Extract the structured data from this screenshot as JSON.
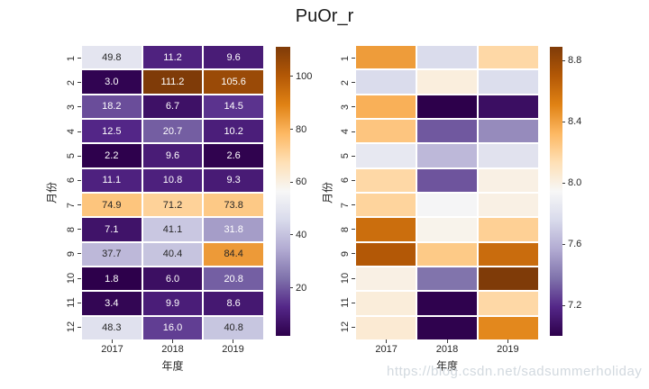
{
  "title": "PuOr_r",
  "watermark": "https://blog.csdn.net/sadsummerholiday",
  "colors": {
    "background": "#ffffff",
    "tick_label": "#262626",
    "annotation_dark": "#262626",
    "annotation_light": "#ffffff",
    "watermark": "#d2d9df",
    "colormap_name": "PuOr_r",
    "colormap_stops": [
      "#2d004b",
      "#542788",
      "#8073ac",
      "#b2abd2",
      "#d8daeb",
      "#f7f7f7",
      "#fee0b6",
      "#fdb863",
      "#e08214",
      "#b35806",
      "#7f3b08"
    ]
  },
  "chart_data": [
    {
      "type": "heatmap",
      "colormap": "PuOr_r",
      "annotated": true,
      "xlabel": "年度",
      "ylabel": "月份",
      "x_categories": [
        "2017",
        "2018",
        "2019"
      ],
      "y_categories": [
        "1",
        "2",
        "3",
        "4",
        "5",
        "6",
        "7",
        "8",
        "9",
        "10",
        "11",
        "12"
      ],
      "vmin": 1.8,
      "vmax": 111.2,
      "colorbar_ticks": [
        "20",
        "40",
        "60",
        "80",
        "100"
      ],
      "values": [
        [
          49.8,
          11.2,
          9.6
        ],
        [
          3.0,
          111.2,
          105.6
        ],
        [
          18.2,
          6.7,
          14.5
        ],
        [
          12.5,
          20.7,
          10.2
        ],
        [
          2.2,
          9.6,
          2.6
        ],
        [
          11.1,
          10.8,
          9.3
        ],
        [
          74.9,
          71.2,
          73.8
        ],
        [
          7.1,
          41.1,
          31.8
        ],
        [
          37.7,
          40.4,
          84.4
        ],
        [
          1.8,
          6.0,
          20.8
        ],
        [
          3.4,
          9.9,
          8.6
        ],
        [
          48.3,
          16.0,
          40.8
        ]
      ]
    },
    {
      "type": "heatmap",
      "colormap": "PuOr_r",
      "annotated": false,
      "xlabel": "年度",
      "ylabel": "月份",
      "x_categories": [
        "2017",
        "2018",
        "2019"
      ],
      "y_categories": [
        "1",
        "2",
        "3",
        "4",
        "5",
        "6",
        "7",
        "8",
        "9",
        "10",
        "11",
        "12"
      ],
      "vmin": 7.0,
      "vmax": 8.89,
      "colorbar_ticks": [
        "7.2",
        "7.6",
        "8.0",
        "8.4",
        "8.8"
      ],
      "values": [
        [
          8.42,
          7.77,
          8.17
        ],
        [
          7.77,
          8.02,
          7.78
        ],
        [
          8.35,
          7.0,
          7.07
        ],
        [
          8.26,
          7.31,
          7.46
        ],
        [
          7.85,
          7.62,
          7.81
        ],
        [
          8.17,
          7.3,
          8.0
        ],
        [
          8.19,
          7.93,
          8.0
        ],
        [
          8.6,
          7.98,
          8.21
        ],
        [
          8.7,
          8.24,
          8.61
        ],
        [
          8.0,
          7.38,
          8.89
        ],
        [
          8.03,
          7.01,
          8.17
        ],
        [
          8.05,
          7.01,
          8.49
        ]
      ]
    }
  ]
}
